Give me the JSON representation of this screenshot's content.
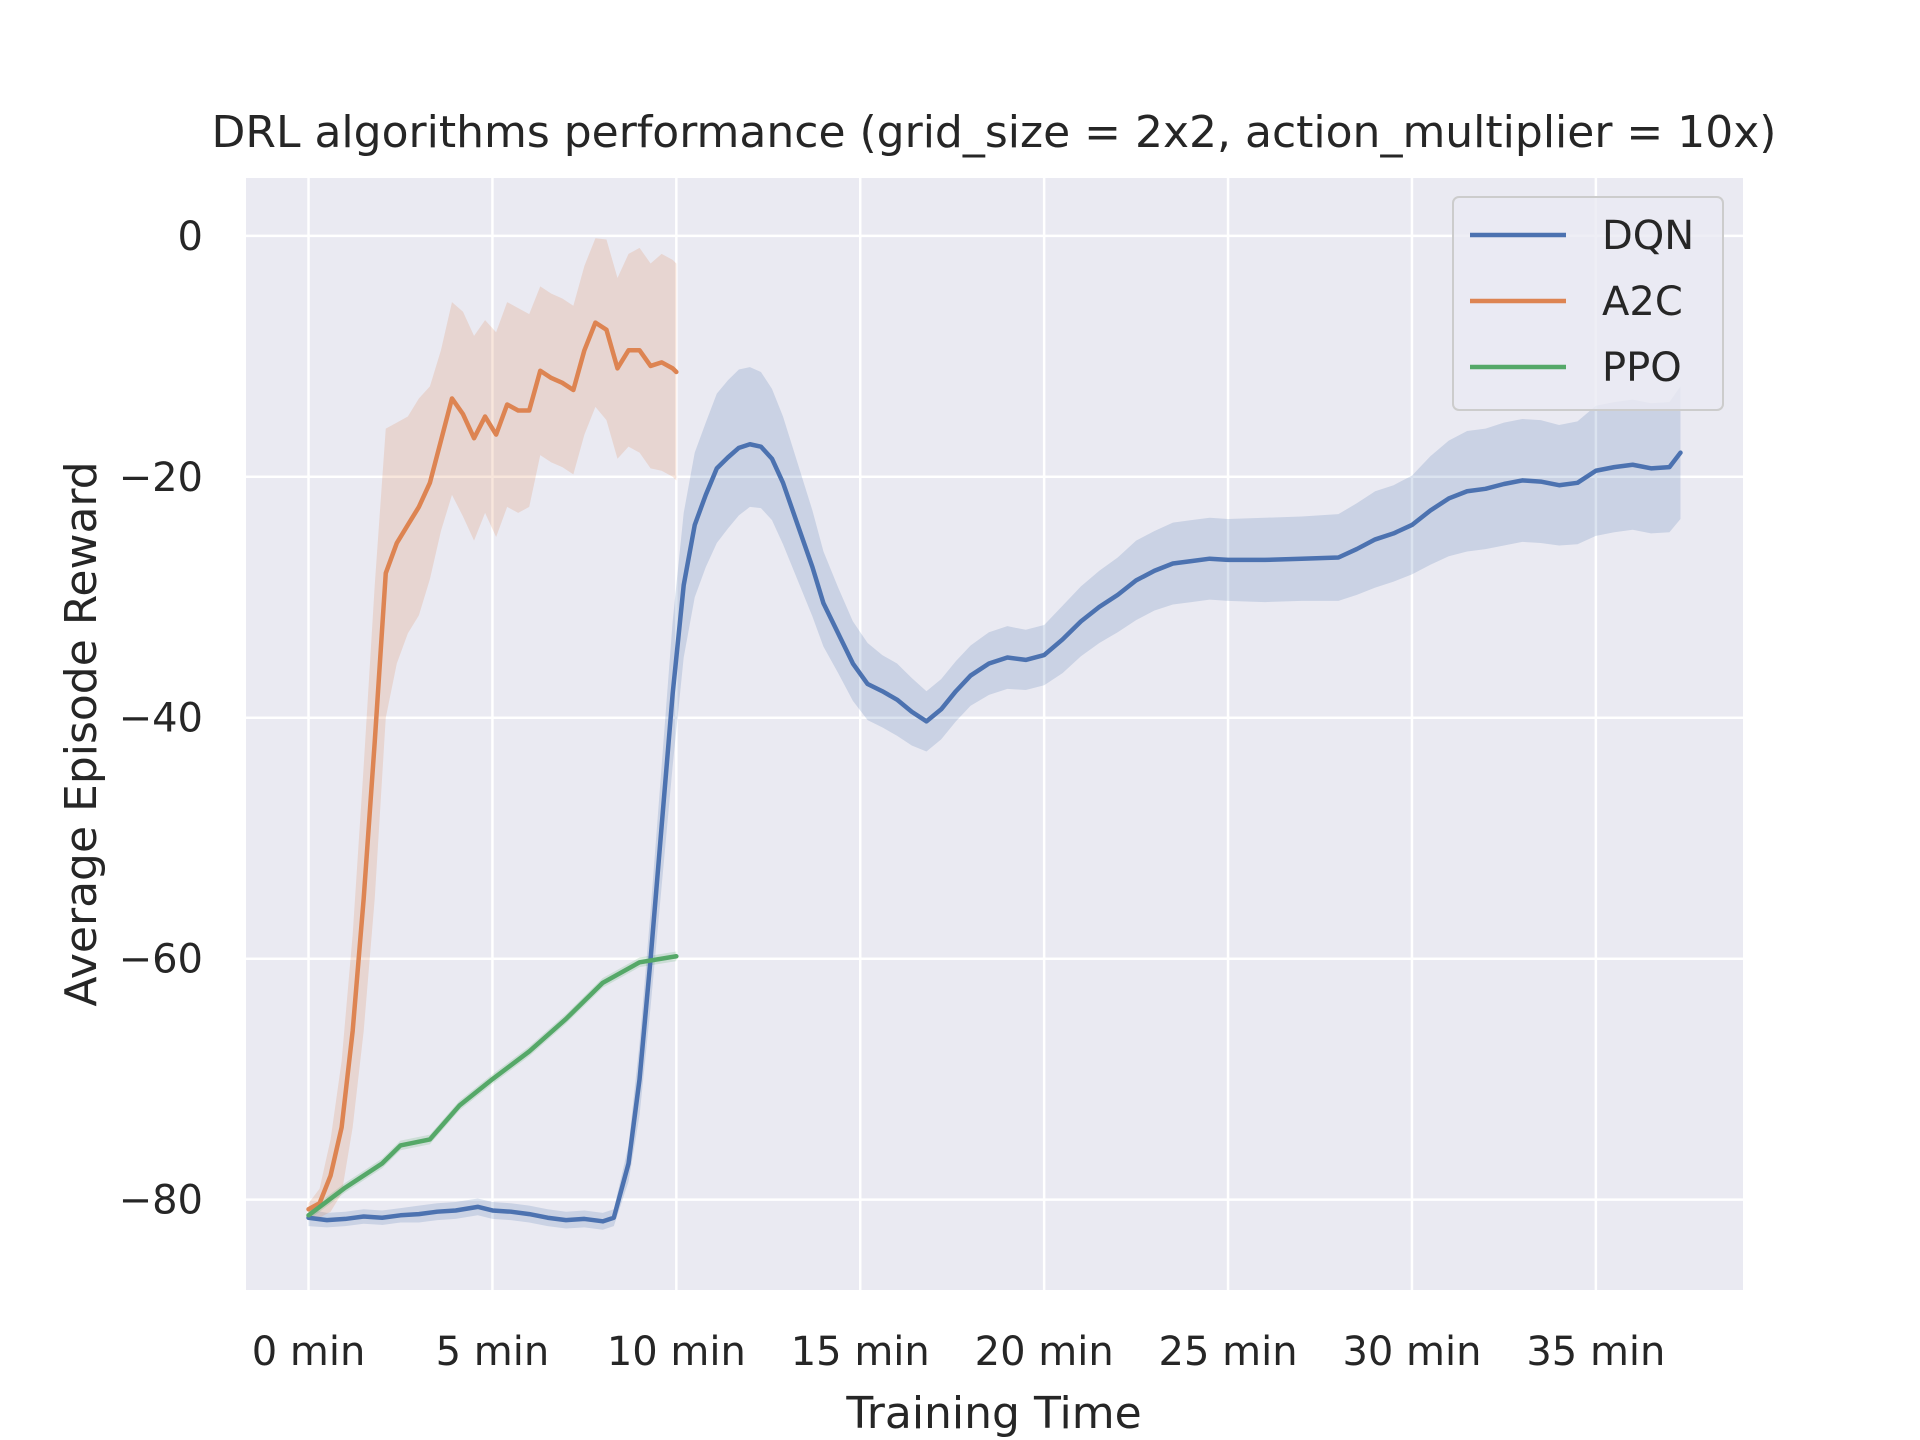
{
  "chart_data": {
    "type": "line",
    "title": "DRL algorithms performance (grid_size = 2x2, action_multiplier = 10x)",
    "xlabel": "Training Time",
    "ylabel": "Average Episode Reward",
    "xlim": [
      -1.7,
      39.0
    ],
    "ylim": [
      -87.5,
      4.8
    ],
    "xticks": [
      0,
      5,
      10,
      15,
      20,
      25,
      30,
      35
    ],
    "xtick_labels": [
      "0 min",
      "5 min",
      "10 min",
      "15 min",
      "20 min",
      "25 min",
      "30 min",
      "35 min"
    ],
    "yticks": [
      0,
      -20,
      -40,
      -60,
      -80
    ],
    "ytick_labels": [
      "0",
      "−20",
      "−40",
      "−60",
      "−80"
    ],
    "grid": true,
    "legend_position": "top-right",
    "series": [
      {
        "name": "DQN",
        "color": "#4c72b0",
        "x": [
          0,
          0.5,
          1,
          1.5,
          2,
          2.5,
          3,
          3.5,
          4,
          4.6,
          5,
          5.5,
          6,
          6.5,
          7,
          7.5,
          8,
          8.3,
          8.7,
          9.0,
          9.3,
          9.6,
          9.9,
          10.2,
          10.5,
          10.8,
          11.1,
          11.4,
          11.7,
          12.0,
          12.3,
          12.6,
          12.9,
          13.3,
          13.7,
          14.0,
          14.4,
          14.8,
          15.2,
          15.6,
          16.0,
          16.4,
          16.8,
          17.2,
          17.6,
          18.0,
          18.5,
          19.0,
          19.5,
          20.0,
          20.5,
          21.0,
          21.5,
          22.0,
          22.5,
          23.0,
          23.5,
          24.0,
          24.5,
          25.0,
          26.0,
          27.0,
          28.0,
          28.5,
          29.0,
          29.5,
          30.0,
          30.5,
          31.0,
          31.5,
          32.0,
          32.5,
          33.0,
          33.5,
          34.0,
          34.5,
          35.0,
          35.5,
          36.0,
          36.5,
          37.0,
          37.3
        ],
        "y": [
          -81.5,
          -81.7,
          -81.6,
          -81.4,
          -81.5,
          -81.3,
          -81.2,
          -81.0,
          -80.9,
          -80.6,
          -80.9,
          -81.0,
          -81.2,
          -81.5,
          -81.7,
          -81.6,
          -81.8,
          -81.5,
          -77.0,
          -70.0,
          -60.0,
          -49.0,
          -38.0,
          -29.0,
          -24.0,
          -21.5,
          -19.3,
          -18.4,
          -17.6,
          -17.3,
          -17.5,
          -18.5,
          -20.5,
          -24.0,
          -27.5,
          -30.5,
          -33.0,
          -35.5,
          -37.2,
          -37.8,
          -38.5,
          -39.5,
          -40.3,
          -39.3,
          -37.8,
          -36.5,
          -35.5,
          -35.0,
          -35.2,
          -34.8,
          -33.5,
          -32.0,
          -30.8,
          -29.8,
          -28.6,
          -27.8,
          -27.2,
          -27.0,
          -26.8,
          -26.9,
          -26.9,
          -26.8,
          -26.7,
          -26.0,
          -25.2,
          -24.7,
          -24.0,
          -22.8,
          -21.8,
          -21.2,
          -21.0,
          -20.6,
          -20.3,
          -20.4,
          -20.7,
          -20.5,
          -19.5,
          -19.2,
          -19.0,
          -19.3,
          -19.2,
          -18.0
        ],
        "lower": [
          -82.2,
          -82.3,
          -82.2,
          -82.0,
          -82.1,
          -81.9,
          -81.9,
          -81.7,
          -81.6,
          -81.3,
          -81.6,
          -81.7,
          -81.9,
          -82.2,
          -82.4,
          -82.3,
          -82.5,
          -82.2,
          -78.5,
          -73.0,
          -64.0,
          -54.0,
          -44.0,
          -35.0,
          -30.0,
          -27.5,
          -25.5,
          -24.3,
          -23.2,
          -22.5,
          -22.6,
          -23.6,
          -25.6,
          -28.6,
          -31.6,
          -34.1,
          -36.3,
          -38.6,
          -40.2,
          -40.8,
          -41.5,
          -42.3,
          -42.8,
          -41.8,
          -40.3,
          -39.0,
          -38.1,
          -37.6,
          -37.7,
          -37.3,
          -36.3,
          -34.9,
          -33.8,
          -32.9,
          -31.9,
          -31.1,
          -30.6,
          -30.4,
          -30.2,
          -30.3,
          -30.4,
          -30.3,
          -30.3,
          -29.8,
          -29.2,
          -28.7,
          -28.1,
          -27.3,
          -26.6,
          -26.2,
          -26.0,
          -25.7,
          -25.4,
          -25.5,
          -25.7,
          -25.6,
          -24.9,
          -24.6,
          -24.4,
          -24.7,
          -24.6,
          -23.5
        ],
        "upper": [
          -80.8,
          -81.1,
          -81.0,
          -80.8,
          -80.9,
          -80.7,
          -80.5,
          -80.3,
          -80.2,
          -79.9,
          -80.2,
          -80.3,
          -80.5,
          -80.8,
          -81.0,
          -80.9,
          -81.1,
          -80.8,
          -75.5,
          -67.0,
          -56.0,
          -44.0,
          -32.0,
          -23.0,
          -18.0,
          -15.5,
          -13.1,
          -12.0,
          -11.1,
          -10.9,
          -11.3,
          -12.7,
          -15.0,
          -18.9,
          -22.8,
          -26.2,
          -29.2,
          -32.0,
          -33.8,
          -34.8,
          -35.5,
          -36.7,
          -37.8,
          -36.8,
          -35.3,
          -34.0,
          -32.9,
          -32.4,
          -32.7,
          -32.3,
          -30.7,
          -29.1,
          -27.8,
          -26.7,
          -25.3,
          -24.5,
          -23.8,
          -23.6,
          -23.4,
          -23.5,
          -23.4,
          -23.3,
          -23.1,
          -22.2,
          -21.2,
          -20.7,
          -19.9,
          -18.3,
          -17.0,
          -16.2,
          -16.0,
          -15.5,
          -15.2,
          -15.3,
          -15.7,
          -15.4,
          -14.1,
          -13.8,
          -13.6,
          -13.9,
          -13.8,
          -12.5
        ]
      },
      {
        "name": "A2C",
        "color": "#dd8452",
        "x": [
          0,
          0.3,
          0.6,
          0.9,
          1.2,
          1.5,
          1.8,
          2.1,
          2.4,
          2.7,
          3.0,
          3.3,
          3.6,
          3.9,
          4.2,
          4.5,
          4.8,
          5.1,
          5.4,
          5.7,
          6.0,
          6.3,
          6.6,
          6.9,
          7.2,
          7.5,
          7.8,
          8.1,
          8.4,
          8.7,
          9.0,
          9.3,
          9.6,
          9.9,
          10.0
        ],
        "y": [
          -80.8,
          -80.3,
          -78.0,
          -74.0,
          -66.0,
          -55.0,
          -42.0,
          -28.0,
          -25.5,
          -24.0,
          -22.5,
          -20.5,
          -17.0,
          -13.5,
          -14.8,
          -16.8,
          -15.0,
          -16.5,
          -14.0,
          -14.5,
          -14.5,
          -11.2,
          -11.8,
          -12.2,
          -12.8,
          -9.5,
          -7.2,
          -7.8,
          -11.0,
          -9.5,
          -9.5,
          -10.8,
          -10.5,
          -11.0,
          -11.3
        ],
        "lower": [
          -81.3,
          -81.5,
          -81.0,
          -79.5,
          -74.0,
          -66.0,
          -55.0,
          -40.0,
          -35.5,
          -33.0,
          -31.5,
          -28.5,
          -24.5,
          -21.5,
          -23.3,
          -25.3,
          -23.0,
          -25.0,
          -22.5,
          -23.0,
          -22.5,
          -18.2,
          -18.8,
          -19.2,
          -19.8,
          -16.5,
          -14.2,
          -15.3,
          -18.5,
          -17.5,
          -18.0,
          -19.3,
          -19.5,
          -20.0,
          -20.3
        ],
        "upper": [
          -80.3,
          -79.1,
          -75.0,
          -68.5,
          -58.0,
          -44.0,
          -29.0,
          -16.0,
          -15.5,
          -15.0,
          -13.5,
          -12.5,
          -9.5,
          -5.5,
          -6.3,
          -8.3,
          -7.0,
          -8.0,
          -5.5,
          -6.0,
          -6.5,
          -4.2,
          -4.8,
          -5.2,
          -5.8,
          -2.5,
          -0.2,
          -0.3,
          -3.5,
          -1.5,
          -1.0,
          -2.3,
          -1.5,
          -2.0,
          -2.3
        ]
      },
      {
        "name": "PPO",
        "color": "#55a868",
        "x": [
          0,
          1.0,
          2.0,
          2.5,
          3.3,
          4.1,
          5.0,
          6.0,
          7.0,
          8.0,
          9.0,
          10.0
        ],
        "y": [
          -81.3,
          -79.0,
          -77.0,
          -75.5,
          -75.0,
          -72.2,
          -70.0,
          -67.7,
          -65.0,
          -62.0,
          -60.3,
          -59.8
        ],
        "lower": [
          -81.7,
          -79.4,
          -77.4,
          -75.9,
          -75.4,
          -72.6,
          -70.4,
          -68.1,
          -65.4,
          -62.4,
          -60.7,
          -60.2
        ],
        "upper": [
          -80.9,
          -78.6,
          -76.6,
          -75.1,
          -74.6,
          -71.8,
          -69.6,
          -67.3,
          -64.6,
          -61.6,
          -59.9,
          -59.4
        ]
      }
    ]
  }
}
